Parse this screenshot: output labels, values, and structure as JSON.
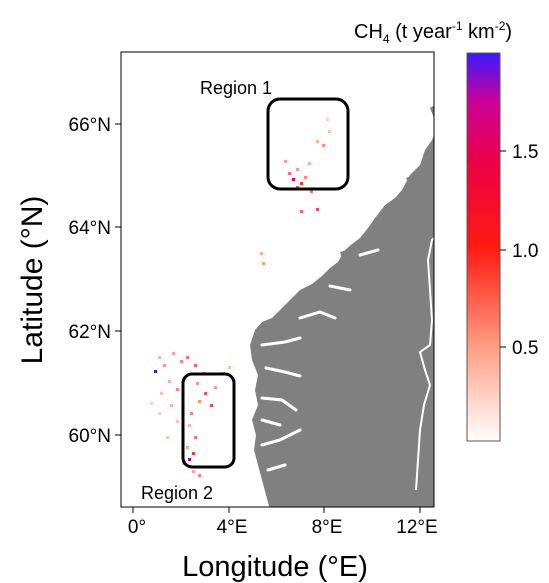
{
  "colorbar": {
    "title_main": "CH",
    "title_sub": "4",
    "title_rest": " (t year",
    "title_sup1": "-1",
    "title_mid": " km",
    "title_sup2": "-2",
    "title_end": ")",
    "ticks": [
      {
        "value": 1.5,
        "label": "1.5"
      },
      {
        "value": 1.0,
        "label": "1.0"
      },
      {
        "value": 0.5,
        "label": "0.5"
      }
    ],
    "range": [
      0,
      1.95
    ],
    "colors": [
      "#ffffff",
      "#ff8060",
      "#ff0000",
      "#e8006a",
      "#3a1aff"
    ]
  },
  "axes": {
    "xlabel": "Longitude (°E)",
    "ylabel": "Latitude (°N)",
    "xticks": [
      {
        "value": 0,
        "label": "0°"
      },
      {
        "value": 4,
        "label": "4°E"
      },
      {
        "value": 8,
        "label": "8°E"
      },
      {
        "value": 12,
        "label": "12°E"
      }
    ],
    "yticks": [
      {
        "value": 60,
        "label": "60°N"
      },
      {
        "value": 62,
        "label": "62°N"
      },
      {
        "value": 64,
        "label": "64°N"
      },
      {
        "value": 66,
        "label": "66°N"
      }
    ],
    "xlim": [
      -0.5,
      12.5
    ],
    "ylim": [
      58.6,
      67.4
    ]
  },
  "regions": [
    {
      "label": "Region 1",
      "lon": [
        5.9,
        9.2
      ],
      "lat": [
        64.7,
        66.5
      ]
    },
    {
      "label": "Region 2",
      "lon": [
        2.1,
        4.3
      ],
      "lat": [
        59.3,
        61.2
      ]
    }
  ],
  "colors": {
    "land": "#808080",
    "border": "#ffffff",
    "frame": "#000000"
  }
}
